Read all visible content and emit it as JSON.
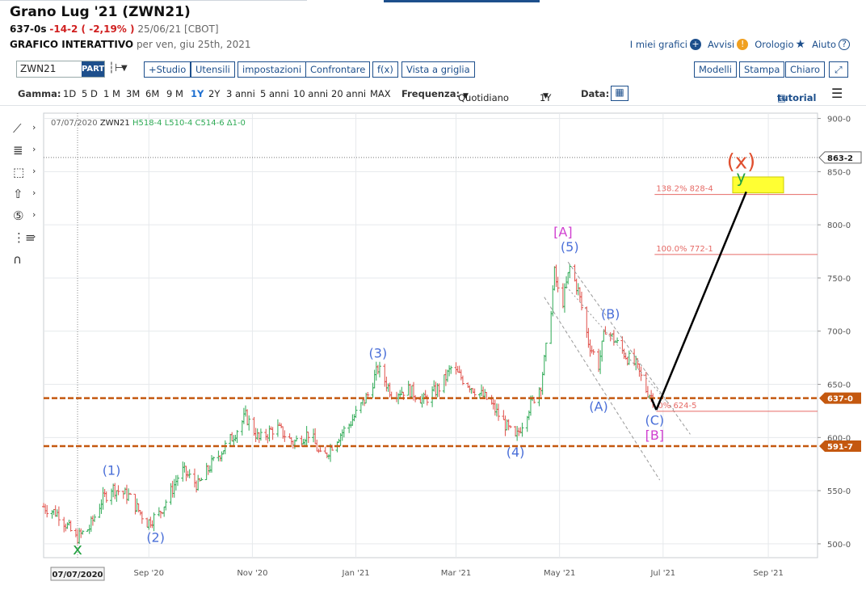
{
  "header": {
    "title": "Grano Lug '21 (ZWN21)",
    "price": "637-0s",
    "change": "-14-2 ( -2,19% )",
    "date_exchange": "25/06/21 [CBOT]",
    "chart_type_label": "GRAFICO INTERATTIVO",
    "chart_date_text": "per ven, giu 25th, 2021"
  },
  "top_links": {
    "my_charts": "I miei grafici",
    "alerts": "Avvisi",
    "clock": "Orologio",
    "help": "Aiuto"
  },
  "toolbar": {
    "symbol_value": "ZWN21",
    "part_label": "PART",
    "buttons": [
      "+Studio",
      "Utensili",
      "impostazioni",
      "Confrontare",
      "f(x)",
      "Vista a griglia"
    ],
    "right_buttons": [
      "Modelli",
      "Stampa",
      "Chiaro"
    ]
  },
  "range_bar": {
    "range_label": "Gamma:",
    "ranges": [
      "1D",
      "5 D",
      "1 M",
      "3M",
      "6M",
      "9 M",
      "1Y",
      "2Y",
      "3 anni",
      "5 anni",
      "10 anni",
      "20 anni",
      "MAX"
    ],
    "selected_range": "1Y",
    "frequency_label": "Frequenza:",
    "frequency_value": "Quotidiano",
    "period_value": "1Y",
    "date_label": "Data:",
    "tutorial_label": "tutorial"
  },
  "colors": {
    "up_bar": "#2eaa55",
    "down_bar": "#e0504a",
    "support_line": "#c4580f",
    "fib_line": "#e66a66",
    "wave_blue": "#4a6fd8",
    "wave_magenta": "#d040d0",
    "wave_green": "#22a040",
    "wave_red": "#e05030",
    "highlight": "#ffff33"
  },
  "chart_data": {
    "type": "bar",
    "symbol": "ZWN21",
    "ohlc_label": {
      "date": "07/07/2020",
      "symbol": "ZWN21",
      "high": "H518-4",
      "low": "L510-4",
      "close": "C514-6",
      "change": "Δ1-0"
    },
    "x_range": [
      "2020-07-01",
      "2021-09-30"
    ],
    "x_ticks": [
      {
        "label": "Sep '20",
        "date": "2020-09-01"
      },
      {
        "label": "Nov '20",
        "date": "2020-11-01"
      },
      {
        "label": "Jan '21",
        "date": "2021-01-01"
      },
      {
        "label": "Mar '21",
        "date": "2021-03-01"
      },
      {
        "label": "May '21",
        "date": "2021-05-01"
      },
      {
        "label": "Jul '21",
        "date": "2021-07-01"
      },
      {
        "label": "Sep '21",
        "date": "2021-09-01"
      }
    ],
    "crosshair_date_label": "07/07/2020",
    "y_range": [
      487,
      905
    ],
    "y_ticks": [
      {
        "label": "500-0",
        "value": 500
      },
      {
        "label": "550-0",
        "value": 550
      },
      {
        "label": "600-0",
        "value": 600
      },
      {
        "label": "650-0",
        "value": 650
      },
      {
        "label": "700-0",
        "value": 700
      },
      {
        "label": "750-0",
        "value": 750
      },
      {
        "label": "800-0",
        "value": 800
      },
      {
        "label": "850-0",
        "value": 850
      },
      {
        "label": "900-0",
        "value": 900
      }
    ],
    "price_path": [
      [
        "2020-07-01",
        535
      ],
      [
        "2020-07-10",
        528
      ],
      [
        "2020-07-20",
        505
      ],
      [
        "2020-07-28",
        515
      ],
      [
        "2020-08-04",
        540
      ],
      [
        "2020-08-10",
        553
      ],
      [
        "2020-08-20",
        545
      ],
      [
        "2020-08-31",
        520
      ],
      [
        "2020-09-07",
        528
      ],
      [
        "2020-09-15",
        552
      ],
      [
        "2020-09-20",
        570
      ],
      [
        "2020-09-30",
        555
      ],
      [
        "2020-10-08",
        575
      ],
      [
        "2020-10-20",
        600
      ],
      [
        "2020-10-28",
        620
      ],
      [
        "2020-11-05",
        598
      ],
      [
        "2020-11-15",
        610
      ],
      [
        "2020-11-25",
        595
      ],
      [
        "2020-12-05",
        605
      ],
      [
        "2020-12-12",
        578
      ],
      [
        "2020-12-20",
        598
      ],
      [
        "2020-12-28",
        612
      ],
      [
        "2021-01-08",
        640
      ],
      [
        "2021-01-14",
        665
      ],
      [
        "2021-01-22",
        642
      ],
      [
        "2021-02-01",
        645
      ],
      [
        "2021-02-10",
        635
      ],
      [
        "2021-02-20",
        648
      ],
      [
        "2021-02-26",
        665
      ],
      [
        "2021-03-05",
        655
      ],
      [
        "2021-03-12",
        645
      ],
      [
        "2021-03-20",
        635
      ],
      [
        "2021-03-30",
        612
      ],
      [
        "2021-04-05",
        598
      ],
      [
        "2021-04-12",
        625
      ],
      [
        "2021-04-20",
        650
      ],
      [
        "2021-04-25",
        705
      ],
      [
        "2021-04-28",
        755
      ],
      [
        "2021-05-02",
        720
      ],
      [
        "2021-05-07",
        760
      ],
      [
        "2021-05-12",
        738
      ],
      [
        "2021-05-18",
        690
      ],
      [
        "2021-05-24",
        668
      ],
      [
        "2021-05-28",
        703
      ],
      [
        "2021-06-03",
        690
      ],
      [
        "2021-06-10",
        675
      ],
      [
        "2021-06-15",
        668
      ],
      [
        "2021-06-21",
        645
      ],
      [
        "2021-06-25",
        637
      ]
    ],
    "last_price": {
      "label": "637-0",
      "value": 637
    },
    "support_levels": [
      {
        "label": "637-0",
        "value": 637
      },
      {
        "label": "591-7",
        "value": 591.875
      }
    ],
    "marker_level": {
      "label": "863-2",
      "value": 863.25
    },
    "fib_levels": [
      {
        "label": "138.2% 828-4",
        "value": 828.5
      },
      {
        "label": "100.0% 772-1",
        "value": 772.125
      },
      {
        "label": "0% 624-5",
        "value": 624.625
      }
    ],
    "wave_labels": [
      {
        "text": "x",
        "date": "2020-07-21",
        "price": 490,
        "color": "green"
      },
      {
        "text": "(1)",
        "date": "2020-08-10",
        "price": 565,
        "color": "blue"
      },
      {
        "text": "(2)",
        "date": "2020-09-05",
        "price": 502,
        "color": "blue"
      },
      {
        "text": "(3)",
        "date": "2021-01-14",
        "price": 675,
        "color": "blue"
      },
      {
        "text": "(4)",
        "date": "2021-04-05",
        "price": 582,
        "color": "blue"
      },
      {
        "text": "(5)",
        "date": "2021-05-07",
        "price": 775,
        "color": "blue"
      },
      {
        "text": "[A]",
        "date": "2021-05-03",
        "price": 789,
        "color": "magenta"
      },
      {
        "text": "(A)",
        "date": "2021-05-24",
        "price": 625,
        "color": "blue"
      },
      {
        "text": "(B)",
        "date": "2021-05-31",
        "price": 712,
        "color": "blue"
      },
      {
        "text": "(C)",
        "date": "2021-06-26",
        "price": 612,
        "color": "blue"
      },
      {
        "text": "[B]",
        "date": "2021-06-26",
        "price": 598,
        "color": "magenta"
      },
      {
        "text": "(x)",
        "date": "2021-08-16",
        "price": 853,
        "color": "red"
      },
      {
        "text": "y",
        "date": "2021-08-16",
        "price": 840,
        "color": "green"
      }
    ],
    "projection": {
      "from": [
        "2021-06-27",
        626
      ],
      "to": [
        "2021-08-19",
        831
      ]
    },
    "target_box": {
      "date_from": "2021-08-11",
      "date_to": "2021-09-10",
      "price_low": 830,
      "price_high": 845
    },
    "channel_lines": [
      {
        "from": [
          "2021-05-06",
          765
        ],
        "to": [
          "2021-07-17",
          603
        ]
      },
      {
        "from": [
          "2021-04-22",
          732
        ],
        "to": [
          "2021-06-29",
          560
        ]
      },
      {
        "from": [
          "2021-05-05",
          742
        ],
        "to": [
          "2021-07-08",
          625
        ]
      }
    ],
    "grid": true
  }
}
